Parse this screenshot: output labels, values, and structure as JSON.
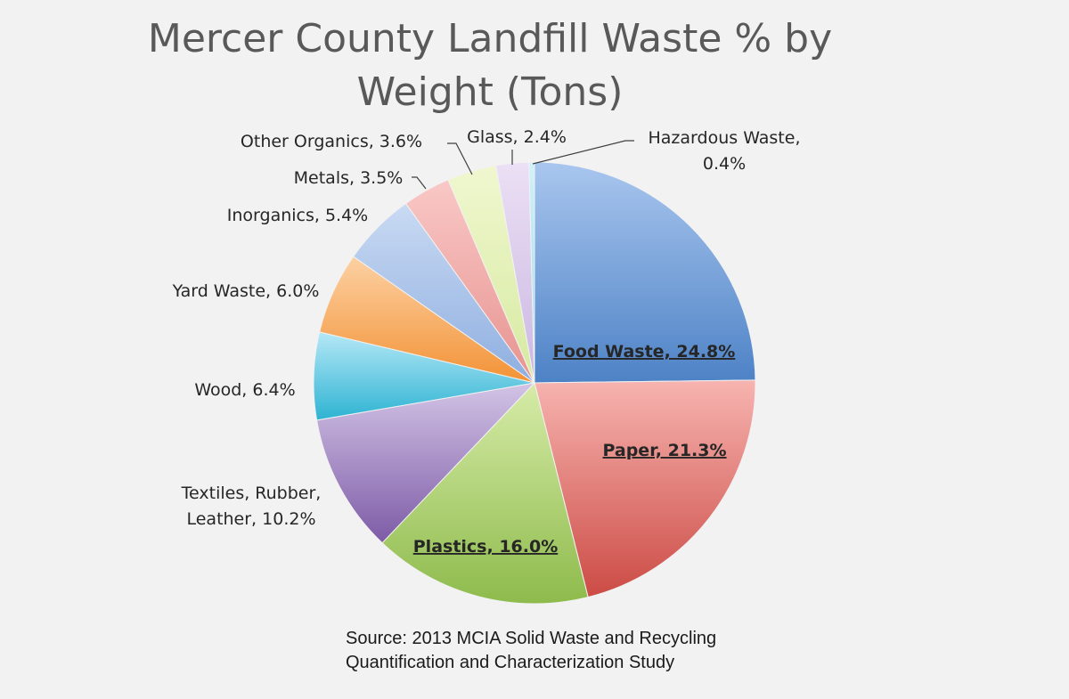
{
  "chart_data": {
    "type": "pie",
    "title": "Mercer County Landfill Waste % by Weight (Tons)",
    "unit": "%",
    "slices": [
      {
        "label": "Food Waste, 24.8%",
        "category": "Food Waste",
        "value": 24.8,
        "color_light": "#a9c6ee",
        "color_dark": "#4d82c6",
        "label_placement": "inside-emphasized"
      },
      {
        "label": "Paper, 21.3%",
        "category": "Paper",
        "value": 21.3,
        "color_light": "#f7b4b0",
        "color_dark": "#cc4b45",
        "label_placement": "inside-emphasized"
      },
      {
        "label": "Plastics, 16.0%",
        "category": "Plastics",
        "value": 16.0,
        "color_light": "#d6eba8",
        "color_dark": "#8ebb4c",
        "label_placement": "inside-emphasized"
      },
      {
        "label": "Textiles, Rubber, Leather, 10.2%",
        "category": "Textiles, Rubber, Leather",
        "value": 10.2,
        "color_light": "#d3c4e6",
        "color_dark": "#7d5ba6",
        "label_placement": "outside"
      },
      {
        "label": "Wood, 6.4%",
        "category": "Wood",
        "value": 6.4,
        "color_light": "#b6e8f7",
        "color_dark": "#2db3d2",
        "label_placement": "outside"
      },
      {
        "label": "Yard Waste, 6.0%",
        "category": "Yard Waste",
        "value": 6.0,
        "color_light": "#fcd1a3",
        "color_dark": "#f39236",
        "label_placement": "outside"
      },
      {
        "label": "Inorganics, 5.4%",
        "category": "Inorganics",
        "value": 5.4,
        "color_light": "#c9daf3",
        "color_dark": "#8eaee0",
        "label_placement": "outside"
      },
      {
        "label": "Metals, 3.5%",
        "category": "Metals",
        "value": 3.5,
        "color_light": "#f9c8c6",
        "color_dark": "#e79390",
        "label_placement": "outside"
      },
      {
        "label": "Other Organics, 3.6%",
        "category": "Other Organics",
        "value": 3.6,
        "color_light": "#f0f7cf",
        "color_dark": "#d6eaa1",
        "label_placement": "outside"
      },
      {
        "label": "Glass, 2.4%",
        "category": "Glass",
        "value": 2.4,
        "color_light": "#ebe0f4",
        "color_dark": "#cbb7e2",
        "label_placement": "outside"
      },
      {
        "label": "Hazardous Waste, 0.4%",
        "category": "Hazardous Waste",
        "value": 0.4,
        "color_light": "#d2f1fa",
        "color_dark": "#8fdaf0",
        "label_placement": "outside"
      }
    ],
    "start_angle": "12 o'clock",
    "direction": "clockwise",
    "legend": "none",
    "source": "Source: 2013 MCIA Solid Waste and Recycling Quantification and Characterization Study"
  }
}
